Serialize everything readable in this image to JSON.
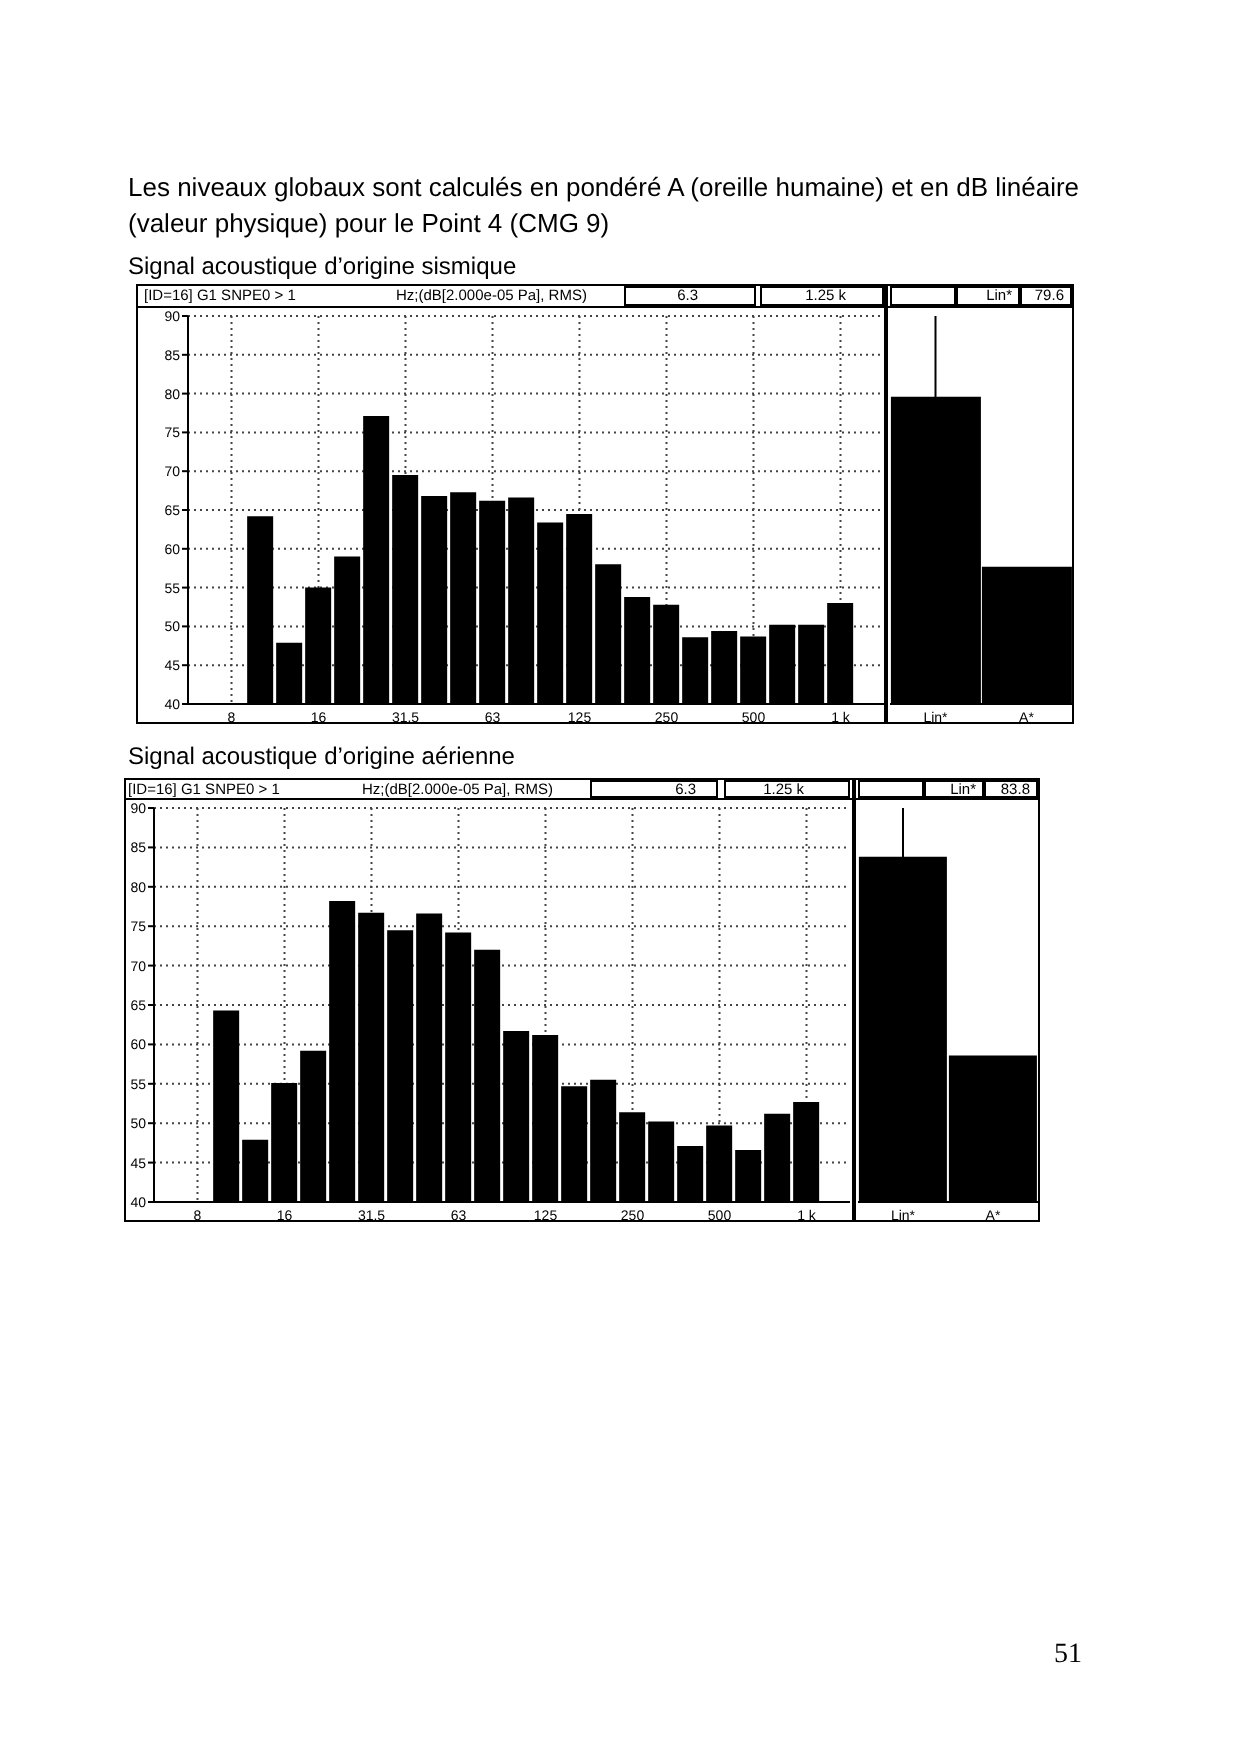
{
  "chart_data": [
    {
      "type": "bar",
      "title": "Les niveaux globaux sont calculés en pondéré A (oreille humaine) et en dB linéaire (valeur physique) pour le Point 4 (CMG 9)",
      "subtitle": "Signal acoustique d’origine sismique",
      "annotations": [
        "[ID=16] G1 SNPE0 > 1",
        "Hz;(dB[2.000e-05 Pa], RMS)",
        "6.3",
        "1.25 k"
      ],
      "categories": [
        null,
        "8",
        null,
        null,
        "16",
        null,
        null,
        "31.5",
        null,
        null,
        "63",
        null,
        null,
        "125",
        null,
        null,
        "250",
        null,
        null,
        "500",
        null,
        null,
        "1 k",
        null
      ],
      "values": [
        null,
        null,
        64.2,
        47.9,
        55.0,
        59.0,
        77.1,
        69.5,
        66.8,
        67.3,
        66.2,
        66.6,
        63.4,
        64.5,
        58.0,
        53.8,
        52.8,
        48.6,
        49.4,
        48.7,
        50.2,
        50.2,
        53.0,
        null
      ],
      "color": "#000000",
      "ylim": [
        40,
        90
      ],
      "yticks": [
        40,
        45,
        50,
        55,
        60,
        65,
        70,
        75,
        80,
        85,
        90
      ],
      "grid": true
    },
    {
      "type": "bar",
      "categories": [
        "Lin*",
        "A*"
      ],
      "values": [
        79.6,
        57.7
      ],
      "color": "#000000",
      "ylim": [
        40,
        90
      ],
      "tick_labels": "x",
      "annotations": [
        "Lin*",
        "79.6"
      ],
      "ref_lines": [
        {
          "axis": "x",
          "value": "Lin*"
        }
      ]
    },
    {
      "type": "bar",
      "subtitle": "Signal acoustique d’origine aérienne",
      "annotations": [
        "[ID=16] G1 SNPE0 > 1",
        "Hz;(dB[2.000e-05 Pa], RMS)",
        "6.3",
        "1.25 k"
      ],
      "categories": [
        null,
        "8",
        null,
        null,
        "16",
        null,
        null,
        "31.5",
        null,
        null,
        "63",
        null,
        null,
        "125",
        null,
        null,
        "250",
        null,
        null,
        "500",
        null,
        null,
        "1 k",
        null
      ],
      "values": [
        null,
        null,
        64.3,
        47.9,
        55.1,
        59.2,
        78.2,
        76.7,
        74.5,
        76.6,
        74.2,
        72.0,
        61.7,
        61.2,
        54.7,
        55.5,
        51.4,
        50.2,
        47.1,
        49.7,
        46.6,
        51.2,
        52.7,
        null
      ],
      "color": "#000000",
      "ylim": [
        40,
        90
      ],
      "yticks": [
        40,
        45,
        50,
        55,
        60,
        65,
        70,
        75,
        80,
        85,
        90
      ],
      "grid": true
    },
    {
      "type": "bar",
      "categories": [
        "Lin*",
        "A*"
      ],
      "values": [
        83.8,
        58.6
      ],
      "color": "#000000",
      "ylim": [
        40,
        90
      ],
      "tick_labels": "x",
      "annotations": [
        "Lin*",
        "83.8",
        "51"
      ],
      "ref_lines": [
        {
          "axis": "x",
          "value": "Lin*"
        }
      ]
    }
  ]
}
